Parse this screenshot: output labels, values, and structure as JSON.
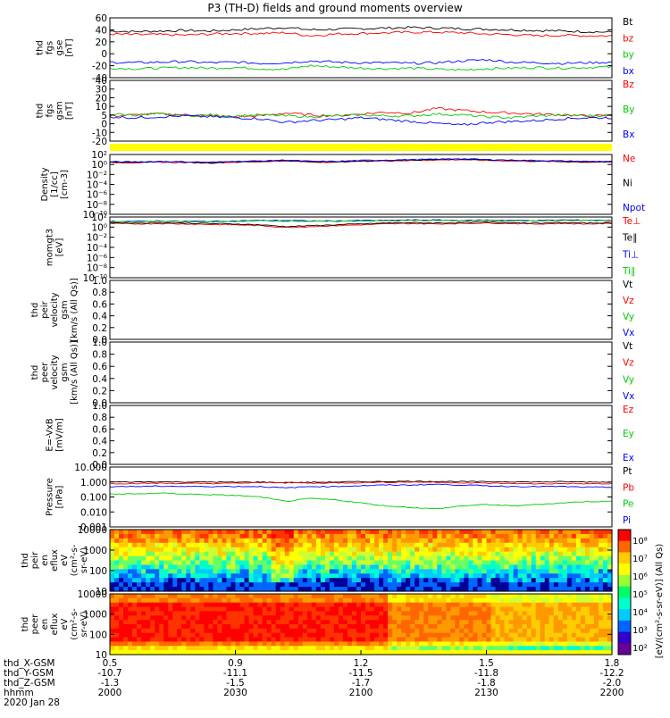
{
  "title": "P3 (TH-D) fields and ground moments overview",
  "colors": {
    "black": "#000000",
    "red": "#ff0000",
    "green": "#00cc00",
    "blue": "#0000ff",
    "yellow": "#ffff00"
  },
  "chart_data": [
    {
      "id": "fgs-gse",
      "type": "line",
      "ylabel_lines": [
        "thd",
        "fgs",
        "gse",
        "[nT]"
      ],
      "ylim": [
        -40,
        60
      ],
      "yticks": [
        "60",
        "40",
        "20",
        "0",
        "-20",
        "-40"
      ],
      "series": [
        {
          "name": "Bt",
          "color": "#000000",
          "values": [
            38,
            37,
            38,
            39,
            38,
            40,
            42,
            44,
            40,
            41,
            42,
            43,
            44,
            43,
            42,
            41,
            40,
            39,
            38,
            37,
            36
          ]
        },
        {
          "name": "bz",
          "color": "#ff0000",
          "values": [
            33,
            32,
            32,
            31,
            33,
            34,
            34,
            35,
            30,
            33,
            34,
            35,
            36,
            36,
            35,
            33,
            32,
            30,
            31,
            30,
            30
          ]
        },
        {
          "name": "by",
          "color": "#00cc00",
          "values": [
            -24,
            -25,
            -24,
            -23,
            -24,
            -23,
            -25,
            -26,
            -20,
            -22,
            -24,
            -25,
            -24,
            -26,
            -27,
            -25,
            -24,
            -23,
            -24,
            -23,
            -22
          ]
        },
        {
          "name": "bx",
          "color": "#0000ff",
          "values": [
            -14,
            -15,
            -14,
            -13,
            -15,
            -14,
            -16,
            -15,
            -12,
            -14,
            -15,
            -15,
            -16,
            -15,
            -12,
            -10,
            -14,
            -15,
            -16,
            -15,
            -14
          ]
        }
      ]
    },
    {
      "id": "fgs-gsm",
      "type": "line",
      "ylabel_lines": [
        "thd",
        "fgs",
        "gsm",
        "[nT]"
      ],
      "ylim": [
        -25,
        40
      ],
      "yticks": [
        "40",
        "30",
        "20",
        "10",
        "5",
        "0",
        "-10",
        "-20"
      ],
      "series": [
        {
          "name": "Bz",
          "color": "#ff0000",
          "values": [
            2,
            3,
            4,
            3,
            2,
            1,
            2,
            5,
            3,
            2,
            4,
            6,
            5,
            10,
            8,
            6,
            5,
            4,
            3,
            2,
            2
          ]
        },
        {
          "name": "By",
          "color": "#00cc00",
          "values": [
            4,
            3,
            4,
            2,
            3,
            2,
            3,
            2,
            1,
            2,
            3,
            2,
            2,
            4,
            3,
            1,
            0,
            2,
            3,
            2,
            3
          ]
        },
        {
          "name": "Bx",
          "color": "#0000ff",
          "values": [
            1,
            0,
            1,
            2,
            1,
            0,
            -1,
            -5,
            -3,
            -2,
            0,
            -2,
            -4,
            -6,
            -8,
            -5,
            -4,
            -3,
            -1,
            0,
            0
          ]
        }
      ]
    },
    {
      "id": "density",
      "type": "line",
      "scale": "log",
      "ylabel_lines": [
        "Density",
        "[1/cc]",
        "[cm-3]"
      ],
      "ylim": [
        -11,
        3
      ],
      "yticks": [
        "10²",
        "10⁰",
        "10⁻²",
        "10⁻⁴",
        "10⁻⁶",
        "10⁻⁸",
        "10⁻¹⁰"
      ],
      "series": [
        {
          "name": "Ne",
          "color": "#ff0000",
          "values": [
            1.1,
            1.1,
            1.2,
            1.1,
            1.0,
            1.2,
            1.3,
            1.5,
            1.2,
            1.2,
            1.4,
            1.5,
            1.6,
            1.7,
            1.8,
            1.6,
            1.5,
            1.4,
            1.3,
            1.2,
            1.2
          ]
        },
        {
          "name": "Ni",
          "color": "#000000",
          "values": [
            1.2,
            1.2,
            1.3,
            1.2,
            1.1,
            1.3,
            1.4,
            1.6,
            1.3,
            1.3,
            1.5,
            1.6,
            1.7,
            1.8,
            1.9,
            1.7,
            1.6,
            1.5,
            1.4,
            1.3,
            1.3
          ]
        },
        {
          "name": "Npot",
          "color": "#0000ff",
          "values": [
            1.3,
            1.3,
            1.4,
            1.3,
            1.2,
            1.4,
            1.5,
            1.7,
            1.4,
            1.4,
            1.6,
            1.7,
            1.8,
            1.9,
            2.0,
            1.8,
            1.7,
            1.6,
            1.5,
            1.4,
            1.4
          ]
        }
      ]
    },
    {
      "id": "temperature",
      "type": "line",
      "scale": "log",
      "ylabel_lines": [
        "momgt3",
        "[eV]"
      ],
      "ylim": [
        -11,
        3
      ],
      "yticks": [
        "10²",
        "10⁰",
        "10⁻²",
        "10⁻⁴",
        "10⁻⁶",
        "10⁻⁸",
        "10⁻¹⁰"
      ],
      "series": [
        {
          "name": "Te⊥",
          "color": "#ff0000",
          "values": [
            1.5,
            1.4,
            1.5,
            1.4,
            1.3,
            1.2,
            1.0,
            0.6,
            0.8,
            1.0,
            1.2,
            1.4,
            1.5,
            1.4,
            1.5,
            1.6,
            1.5,
            1.4,
            1.5,
            1.4,
            1.5
          ]
        },
        {
          "name": "Te∥",
          "color": "#000000",
          "values": [
            1.7,
            1.6,
            1.7,
            1.6,
            1.5,
            1.4,
            1.2,
            0.8,
            1.0,
            1.2,
            1.4,
            1.6,
            1.7,
            1.6,
            1.7,
            1.8,
            1.7,
            1.6,
            1.7,
            1.6,
            1.7
          ]
        },
        {
          "name": "Ti⊥",
          "color": "#0000ff",
          "values": [
            2.0,
            2.0,
            2.1,
            2.0,
            2.0,
            2.1,
            2.2,
            2.2,
            2.1,
            2.1,
            2.2,
            2.2,
            2.3,
            2.3,
            2.2,
            2.3,
            2.2,
            2.2,
            2.3,
            2.3,
            2.2
          ]
        },
        {
          "name": "Ti∥",
          "color": "#00cc00",
          "values": [
            1.9,
            1.9,
            2.0,
            1.9,
            1.9,
            2.0,
            2.1,
            2.1,
            2.0,
            2.0,
            2.1,
            2.1,
            2.2,
            2.2,
            2.1,
            2.2,
            2.1,
            2.1,
            2.2,
            2.2,
            2.1
          ]
        }
      ]
    },
    {
      "id": "peir-velocity",
      "type": "line",
      "ylabel_lines": [
        "thd",
        "peir",
        "velocity",
        "gsm",
        "[km/s (All Qs)]"
      ],
      "ylim": [
        0,
        1
      ],
      "yticks": [
        "1.0",
        "0.8",
        "0.6",
        "0.4",
        "0.2",
        "0.0"
      ],
      "series": [
        {
          "name": "Vt",
          "color": "#000000",
          "values": []
        },
        {
          "name": "Vz",
          "color": "#ff0000",
          "values": []
        },
        {
          "name": "Vy",
          "color": "#00cc00",
          "values": []
        },
        {
          "name": "Vx",
          "color": "#0000ff",
          "values": []
        }
      ]
    },
    {
      "id": "peer-velocity",
      "type": "line",
      "ylabel_lines": [
        "thd",
        "peer",
        "velocity",
        "gsm",
        "[km/s (All Qs)]"
      ],
      "ylim": [
        0,
        1
      ],
      "yticks": [
        "1.0",
        "0.8",
        "0.6",
        "0.4",
        "0.2",
        "0.0"
      ],
      "series": [
        {
          "name": "Vt",
          "color": "#000000",
          "values": []
        },
        {
          "name": "Vz",
          "color": "#ff0000",
          "values": []
        },
        {
          "name": "Vy",
          "color": "#00cc00",
          "values": []
        },
        {
          "name": "Vx",
          "color": "#0000ff",
          "values": []
        }
      ]
    },
    {
      "id": "efield",
      "type": "line",
      "ylabel_lines": [
        "E=-VxB",
        "[mV/m]"
      ],
      "ylim": [
        0,
        1
      ],
      "yticks": [
        "1.0",
        "0.8",
        "0.6",
        "0.4",
        "0.2",
        "0.0"
      ],
      "series": [
        {
          "name": "Ez",
          "color": "#ff0000",
          "values": []
        },
        {
          "name": "Ey",
          "color": "#00cc00",
          "values": []
        },
        {
          "name": "Ex",
          "color": "#0000ff",
          "values": []
        }
      ]
    },
    {
      "id": "pressure",
      "type": "line",
      "scale": "log",
      "ylabel_lines": [
        "Pressure",
        "[nPa]"
      ],
      "ylim": [
        -3,
        1
      ],
      "yticks": [
        "10.000",
        "1.000",
        "0.100",
        "0.010",
        "0.001"
      ],
      "series": [
        {
          "name": "Pt",
          "color": "#000000",
          "values": [
            0.0,
            0.0,
            0.02,
            0.0,
            0.0,
            -0.02,
            0.0,
            -0.05,
            -0.02,
            0.0,
            0.02,
            0.03,
            0.05,
            0.04,
            0.03,
            0.02,
            0.02,
            0.0,
            0.02,
            0.0,
            0.0
          ]
        },
        {
          "name": "Pb",
          "color": "#ff0000",
          "values": [
            -0.1,
            -0.1,
            -0.08,
            -0.1,
            -0.1,
            -0.08,
            -0.05,
            -0.02,
            -0.08,
            -0.06,
            -0.04,
            -0.02,
            0.0,
            -0.02,
            -0.05,
            -0.08,
            -0.1,
            -0.12,
            -0.1,
            -0.12,
            -0.12
          ]
        },
        {
          "name": "Pe",
          "color": "#00cc00",
          "values": [
            -0.8,
            -0.8,
            -0.75,
            -0.8,
            -0.85,
            -0.9,
            -1.0,
            -1.3,
            -1.1,
            -1.2,
            -1.4,
            -1.6,
            -1.7,
            -1.8,
            -1.6,
            -1.5,
            -1.6,
            -1.5,
            -1.4,
            -1.3,
            -1.3
          ]
        },
        {
          "name": "Pi",
          "color": "#0000ff",
          "values": [
            -0.3,
            -0.3,
            -0.28,
            -0.3,
            -0.3,
            -0.3,
            -0.3,
            -0.4,
            -0.3,
            -0.3,
            -0.25,
            -0.2,
            -0.2,
            -0.15,
            -0.2,
            -0.25,
            -0.3,
            -0.3,
            -0.3,
            -0.35,
            -0.35
          ]
        }
      ]
    },
    {
      "id": "peir-en-eflux",
      "type": "heatmap",
      "ylabel_lines": [
        "thd",
        "peir",
        "en",
        "eflux",
        "eV",
        "(cm²-s-",
        "sr-eV)"
      ],
      "yticks": [
        "10000",
        "1000",
        "100",
        "10"
      ]
    },
    {
      "id": "peer-en-eflux",
      "type": "heatmap",
      "ylabel_lines": [
        "thd",
        "peer",
        "en",
        "eflux",
        "eV",
        "(cm²-s-",
        "sr-eV)"
      ],
      "yticks": [
        "10000",
        "1000",
        "100",
        "10"
      ]
    }
  ],
  "colorbar": {
    "label": "[eV/(cm²-s-sr-eV)] (All Qs)",
    "ticks": [
      "10⁸",
      "10⁷",
      "10⁶",
      "10⁵",
      "10⁴",
      "10³",
      "10²"
    ]
  },
  "x_axis": {
    "labels": [
      "thd_X-GSM",
      "thd_Y-GSM",
      "thd_Z-GSM",
      "hhmm",
      "2020 Jan 28"
    ],
    "ticks": [
      {
        "x": "-10.7",
        "y": "-1.3",
        "z": "0.5",
        "hhmm": "2000"
      },
      {
        "x": "-11.1",
        "y": "-1.5",
        "z": "0.9",
        "hhmm": "2030"
      },
      {
        "x": "-11.5",
        "y": "-1.7",
        "z": "1.2",
        "hhmm": "2100"
      },
      {
        "x": "-11.8",
        "y": "-1.8",
        "z": "1.5",
        "hhmm": "2130"
      },
      {
        "x": "-12.2",
        "y": "-2.0",
        "z": "1.8",
        "hhmm": "2200"
      }
    ]
  }
}
